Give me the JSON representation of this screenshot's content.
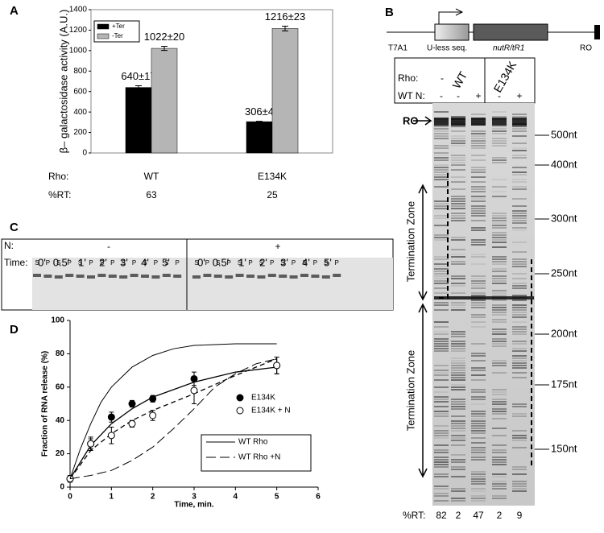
{
  "chart_data": [
    {
      "type": "bar",
      "panel": "A",
      "ylabel": "β– galactosidase activity (A.U.)",
      "categories": [
        "WT",
        "E134K"
      ],
      "category_label": "Rho:",
      "row_label": "%RT:",
      "row_values": [
        63,
        25
      ],
      "series": [
        {
          "name": "+Ter",
          "color": "#000000",
          "values": [
            640,
            306
          ],
          "errors": [
            17,
            4
          ],
          "value_labels": [
            "640±17",
            "306±4"
          ]
        },
        {
          "name": "-Ter",
          "color": "#b5b5b5",
          "values": [
            1022,
            1216
          ],
          "errors": [
            20,
            23
          ],
          "value_labels": [
            "1022±20",
            "1216±23"
          ]
        }
      ],
      "ylim": [
        0,
        1400
      ],
      "yticks": [
        0,
        200,
        400,
        600,
        800,
        1000,
        1200,
        1400
      ],
      "legend": "upper left"
    },
    {
      "type": "scatter",
      "panel": "D",
      "xlabel": "Time, min.",
      "ylabel": "Fraction of RNA release (%)",
      "xlim": [
        0,
        6
      ],
      "xticks": [
        0,
        1,
        2,
        3,
        4,
        5,
        6
      ],
      "ylim": [
        0,
        100
      ],
      "yticks": [
        0,
        20,
        40,
        60,
        80,
        100
      ],
      "series": [
        {
          "name": "E134K",
          "marker": "filled",
          "x": [
            0,
            0.5,
            1,
            1.5,
            2,
            3,
            5
          ],
          "values": [
            5,
            26,
            42,
            50,
            53,
            65,
            73
          ],
          "errors": [
            2,
            3,
            3,
            2,
            2,
            4,
            5
          ],
          "fit": {
            "dash": "solid",
            "x": [
              0,
              0.5,
              1,
              1.5,
              2,
              3,
              4,
              5
            ],
            "values": [
              5,
              25,
              38,
              47,
              54,
              63,
              69,
              72
            ]
          }
        },
        {
          "name": "E134K + N",
          "marker": "open",
          "x": [
            0,
            0.5,
            1,
            1.5,
            2,
            3,
            5
          ],
          "values": [
            5,
            26,
            31,
            38,
            43,
            58,
            73
          ],
          "errors": [
            2,
            4,
            5,
            2,
            3,
            8,
            5
          ],
          "fit": {
            "dash": "dashed",
            "x": [
              0,
              0.5,
              1,
              1.5,
              2,
              3,
              4,
              5
            ],
            "values": [
              5,
              22,
              32,
              40,
              46,
              56,
              67,
              77
            ]
          }
        },
        {
          "name": "WT Rho",
          "type": "line",
          "dash": "solid",
          "x": [
            0,
            0.25,
            0.5,
            0.75,
            1,
            1.5,
            2,
            2.5,
            3,
            4,
            5
          ],
          "values": [
            5,
            23,
            38,
            51,
            60,
            72,
            79,
            83,
            85,
            86,
            86
          ]
        },
        {
          "name": "WT Rho +N",
          "type": "line",
          "dash": "longdash",
          "x": [
            0,
            0.5,
            1,
            1.5,
            2,
            2.5,
            3,
            3.5,
            4,
            4.5,
            5
          ],
          "values": [
            5,
            7,
            10,
            16,
            24,
            35,
            47,
            60,
            68,
            74,
            77
          ]
        }
      ]
    }
  ],
  "panel_b": {
    "label": "B",
    "promoter": "T7A1",
    "elements": [
      "U-less seq.",
      "nutR/tR1",
      "RO"
    ],
    "rho_label": "Rho:",
    "rho": [
      "-",
      "WT",
      "E134K"
    ],
    "n_label": "WT N:",
    "n": [
      "-",
      "-",
      "+",
      "-",
      "+"
    ],
    "ro_label": "RO",
    "markers": [
      "500nt",
      "400nt",
      "300nt",
      "250nt",
      "200nt",
      "175nt",
      "150nt"
    ],
    "zone_label": "Termination Zone",
    "rt_label": "%RT:",
    "rt": [
      82,
      2,
      47,
      2,
      9
    ]
  },
  "panel_c": {
    "label": "C",
    "n_label": "N:",
    "n": [
      "-",
      "+"
    ],
    "time_label": "Time:",
    "times": [
      "0'",
      "0.5'",
      "1'",
      "2'",
      "3'",
      "4'",
      "5'"
    ],
    "fractions": [
      "S",
      "P"
    ]
  }
}
